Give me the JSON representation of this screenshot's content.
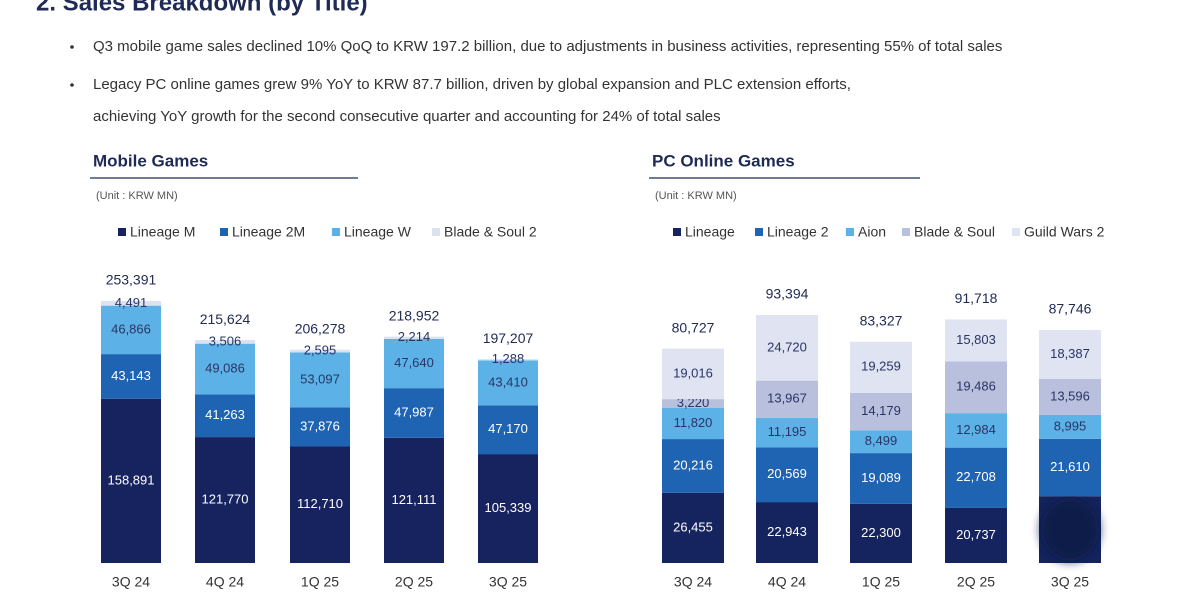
{
  "header": {
    "title": "2. Sales Breakdown (by Title)"
  },
  "bullets": [
    [
      "Q3 mobile game sales declined 10% QoQ to KRW 197.2 billion, due to adjustments in business activities, representing 55% of total sales"
    ],
    [
      "Legacy PC online games grew 9% YoY to KRW 87.7 billion, driven by global expansion and PLC extension efforts,",
      "achieving YoY growth for the second consecutive quarter and accounting for 24% of total sales"
    ]
  ],
  "chart_data": [
    {
      "type": "stacked_bar",
      "title": "Mobile Games",
      "unit": "(Unit : KRW MN)",
      "categories": [
        "3Q 24",
        "4Q 24",
        "1Q 25",
        "2Q 25",
        "3Q 25"
      ],
      "series": [
        {
          "name": "Lineage M",
          "color": "#17235f",
          "values": [
            158891,
            121770,
            112710,
            121111,
            105339
          ],
          "value_labels": [
            "158,891",
            "121,770",
            "112,710",
            "121,111",
            "105,339"
          ]
        },
        {
          "name": "Lineage 2M",
          "color": "#1f63b3",
          "values": [
            43143,
            41263,
            37876,
            47987,
            47170
          ],
          "value_labels": [
            "43,143",
            "41,263",
            "37,876",
            "47,987",
            "47,170"
          ]
        },
        {
          "name": "Lineage W",
          "color": "#5cb1e6",
          "values": [
            46866,
            49086,
            53097,
            47640,
            43410
          ],
          "value_labels": [
            "46,866",
            "49,086",
            "53,097",
            "47,640",
            "43,410"
          ]
        },
        {
          "name": "Blade & Soul 2",
          "color": "#dde2f2",
          "values": [
            4491,
            3506,
            2595,
            2214,
            1288
          ],
          "value_labels": [
            "4,491",
            "3,506",
            "2,595",
            "2,214",
            "1,288"
          ]
        }
      ],
      "totals": [
        253391,
        215624,
        206278,
        218952,
        197207
      ],
      "total_labels": [
        "253,391",
        "215,624",
        "206,278",
        "218,952",
        "197,207"
      ]
    },
    {
      "type": "stacked_bar",
      "title": "PC Online Games",
      "unit": "(Unit : KRW MN)",
      "categories": [
        "3Q 24",
        "4Q 24",
        "1Q 25",
        "2Q 25",
        "3Q 25"
      ],
      "series": [
        {
          "name": "Lineage",
          "color": "#15245e",
          "values": [
            26455,
            22943,
            22300,
            20737,
            25158
          ],
          "value_labels": [
            "26,455",
            "22,943",
            "22,300",
            "20,737",
            null
          ]
        },
        {
          "name": "Lineage 2",
          "color": "#1f63b3",
          "values": [
            20216,
            20569,
            19089,
            22708,
            21610
          ],
          "value_labels": [
            "20,216",
            "20,569",
            "19,089",
            "22,708",
            "21,610"
          ]
        },
        {
          "name": "Aion",
          "color": "#5cb1e6",
          "values": [
            11820,
            11195,
            8499,
            12984,
            8995
          ],
          "value_labels": [
            "11,820",
            "11,195",
            "8,499",
            "12,984",
            "8,995"
          ]
        },
        {
          "name": "Blade & Soul",
          "color": "#b9c0de",
          "values": [
            3220,
            13967,
            14179,
            19486,
            13596
          ],
          "value_labels": [
            "3,220",
            "13,967",
            "14,179",
            "19,486",
            "13,596"
          ]
        },
        {
          "name": "Guild Wars 2",
          "color": "#dfe3f2",
          "values": [
            19016,
            24720,
            19259,
            15803,
            18387
          ],
          "value_labels": [
            "19,016",
            "24,720",
            "19,259",
            "15,803",
            "18,387"
          ]
        }
      ],
      "totals": [
        80727,
        93394,
        83327,
        91718,
        87746
      ],
      "total_labels": [
        "80,727",
        "93,394",
        "83,327",
        "91,718",
        "87,746"
      ]
    }
  ]
}
